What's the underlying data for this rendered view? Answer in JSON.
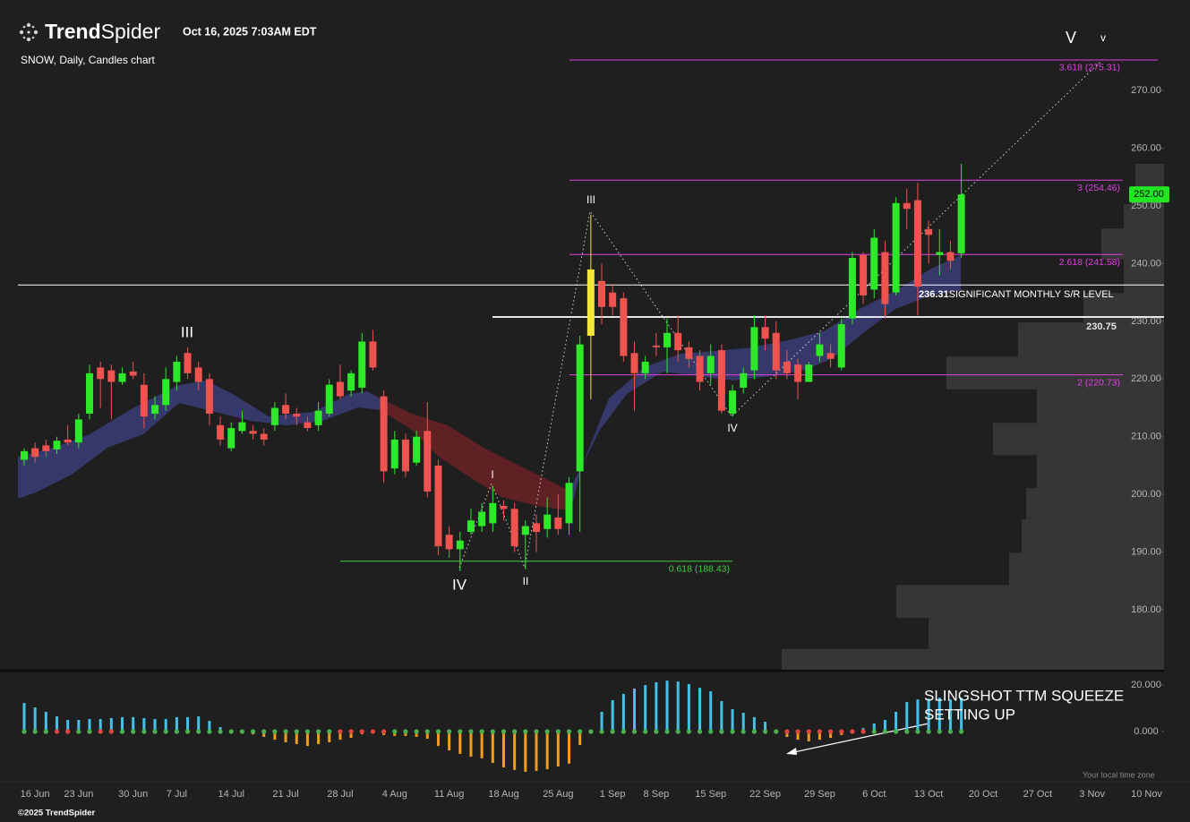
{
  "header": {
    "brand_bold": "Trend",
    "brand_light": "Spider",
    "timestamp": "Oct 16, 2025 7:03AM EDT",
    "footer": "©2025 TrendSpider",
    "timezone_note": "Your local time zone"
  },
  "chart_data": {
    "type": "candlestick",
    "title": "SNOW, Daily, Candles chart",
    "categories": [
      null,
      "16 Jun",
      null,
      null,
      null,
      "23 Jun",
      null,
      null,
      null,
      null,
      "30 Jun",
      null,
      null,
      null,
      "7 Jul",
      null,
      null,
      null,
      null,
      "14 Jul",
      null,
      null,
      null,
      null,
      "21 Jul",
      null,
      null,
      null,
      null,
      "28 Jul",
      null,
      null,
      null,
      null,
      "4 Aug",
      null,
      null,
      null,
      null,
      "11 Aug",
      null,
      null,
      null,
      null,
      "18 Aug",
      null,
      null,
      null,
      null,
      "25 Aug",
      null,
      null,
      null,
      null,
      "1 Sep",
      null,
      null,
      null,
      "8 Sep",
      null,
      null,
      null,
      null,
      "15 Sep",
      null,
      null,
      null,
      null,
      "22 Sep",
      null,
      null,
      null,
      null,
      "29 Sep",
      null,
      null,
      null,
      null,
      "6 Oct",
      null,
      null,
      null,
      null,
      "13 Oct",
      null,
      null,
      null,
      null,
      "20 Oct",
      null,
      null,
      null,
      null,
      "27 Oct",
      null,
      null,
      null,
      null,
      "3 Nov",
      null,
      null,
      null,
      null,
      "10 Nov"
    ],
    "open": [
      206,
      208,
      208.5,
      207.8,
      209.5,
      209,
      214,
      222,
      221.5,
      219.5,
      221.3,
      219,
      214,
      215.5,
      219.5,
      224.5,
      222,
      220,
      212,
      208,
      211,
      211,
      210.5,
      212,
      215.5,
      214,
      212.5,
      212,
      214,
      219.5,
      218,
      218.5,
      226.5,
      217,
      204.5,
      209.5,
      205.5,
      211,
      205,
      193,
      190.5,
      193.5,
      194.5,
      195,
      198,
      197.5,
      193,
      195,
      194,
      196,
      195,
      204,
      227.5,
      237,
      235,
      234,
      224.5,
      221,
      225.8,
      225.5,
      228,
      225.5,
      224,
      221,
      225,
      214,
      218.5,
      221.5,
      229,
      228,
      223,
      222.5,
      219.5,
      224,
      224.5,
      222,
      230.5,
      241.5,
      235.5,
      242,
      235,
      250.5,
      251,
      246,
      241.5,
      242,
      241.8,
      null,
      null,
      null,
      null,
      null,
      null,
      null,
      null,
      null,
      null,
      null,
      null,
      null,
      null,
      null,
      null,
      null
    ],
    "high": [
      208,
      209,
      209.5,
      210,
      212,
      214,
      222.5,
      223,
      222.5,
      222,
      223,
      221,
      217,
      222,
      224,
      225.5,
      223,
      221,
      213.5,
      212.5,
      214.5,
      212,
      211.5,
      216,
      217.5,
      215,
      213.5,
      216,
      220,
      222.5,
      221.5,
      228,
      228.5,
      218,
      211,
      210.5,
      211,
      216,
      206,
      194.5,
      193.5,
      197.5,
      198.5,
      201.5,
      199,
      198.5,
      195.5,
      196.5,
      199.5,
      200,
      203,
      227.5,
      248.5,
      240,
      236.5,
      235,
      226.5,
      224,
      228,
      230.5,
      231,
      226.5,
      225,
      226,
      226,
      219,
      222,
      231,
      231,
      230,
      225,
      223.5,
      223,
      228,
      226,
      230.5,
      242,
      242,
      246,
      244,
      251.5,
      253,
      254,
      247.5,
      246,
      244,
      257.3,
      null,
      null,
      null,
      null,
      null,
      null,
      null,
      null,
      null,
      null,
      null,
      null,
      null,
      null,
      null,
      null,
      null
    ],
    "low": [
      205,
      205.5,
      206.5,
      207,
      208.5,
      208,
      213,
      215,
      213,
      219,
      220,
      211.5,
      213,
      214.5,
      218,
      220,
      218,
      212,
      208.5,
      207.5,
      210.5,
      209.5,
      208.5,
      211,
      213,
      212,
      211,
      211,
      213.5,
      216.5,
      217,
      217.5,
      221.5,
      202,
      203.5,
      203,
      205,
      199.5,
      189.5,
      189,
      186.7,
      193,
      193.5,
      193.5,
      195.5,
      190,
      187,
      190,
      192.5,
      193,
      193,
      193.5,
      216.5,
      229.5,
      231,
      223,
      214.5,
      220,
      224,
      221,
      223,
      222,
      218,
      219,
      214,
      213.5,
      217.5,
      220,
      225,
      220,
      220,
      216.5,
      219.5,
      223,
      222,
      221.5,
      229.5,
      233,
      234,
      230.5,
      234.5,
      246,
      231,
      240,
      238,
      239,
      241,
      null,
      null,
      null,
      null,
      null,
      null,
      null,
      null,
      null,
      null,
      null,
      null,
      null,
      null,
      null,
      null,
      null
    ],
    "close": [
      207.5,
      206.5,
      207.5,
      209.3,
      209,
      213,
      221,
      220,
      219.5,
      221,
      220.6,
      213.5,
      215.5,
      220,
      223,
      221,
      219.5,
      214,
      209.5,
      211.5,
      212.5,
      210.5,
      209.5,
      215,
      214,
      213.5,
      211.5,
      214.5,
      219,
      217,
      221,
      226.5,
      222,
      204,
      209.5,
      204,
      210,
      200.5,
      191,
      190.5,
      192,
      195.5,
      197,
      198.5,
      197.5,
      191,
      194.5,
      193.5,
      196.5,
      194,
      202,
      226,
      239,
      232.5,
      232.5,
      224,
      221,
      223,
      225.5,
      228,
      225,
      223.5,
      219.5,
      224,
      214.5,
      218,
      221,
      229,
      227,
      221.5,
      221,
      219.5,
      222.5,
      226,
      223.5,
      229.5,
      241,
      234.5,
      244.5,
      233,
      250.5,
      249.5,
      236,
      245,
      242,
      240.5,
      252,
      null,
      null,
      null,
      null,
      null,
      null,
      null,
      null,
      null,
      null,
      null,
      null,
      null,
      null,
      null,
      null,
      null
    ],
    "up_color": "#2ee82a",
    "down_color": "#ef5350",
    "highlight": {
      "index": 52,
      "color": "#f5e63a"
    },
    "ylim": [
      169.6,
      282.6
    ],
    "yticks": [
      {
        "value": 180,
        "label": "180.00"
      },
      {
        "value": 190,
        "label": "190.00"
      },
      {
        "value": 200,
        "label": "200.00"
      },
      {
        "value": 210,
        "label": "210.00"
      },
      {
        "value": 220,
        "label": "220.00"
      },
      {
        "value": 230,
        "label": "230.00"
      },
      {
        "value": 240,
        "label": "240.00"
      },
      {
        "value": 250,
        "label": "250.00"
      },
      {
        "value": 260,
        "label": "260.00"
      },
      {
        "value": 270,
        "label": "270.00"
      }
    ],
    "last_price": {
      "value": 252,
      "label": "252.00",
      "color": "#22e622"
    },
    "levels": [
      {
        "value": 236.31,
        "label": "SIGNIFICANT MONTHLY S/R LEVEL",
        "color": "#ffffff"
      },
      {
        "value": 230.75,
        "color": "#e6e6e6"
      }
    ],
    "fib_levels": [
      {
        "value": 275.31,
        "label": "3.618 (275.31)",
        "color": "#e040e0"
      },
      {
        "value": 254.46,
        "label": "3 (254.46)",
        "color": "#e040e0"
      },
      {
        "value": 241.58,
        "label": "2.618 (241.58)",
        "color": "#e040e0"
      },
      {
        "value": 220.73,
        "label": "2 (220.73)",
        "color": "#e040e0"
      },
      {
        "value": 188.43,
        "label": "0.618 (188.43)",
        "color": "#3ed13e"
      }
    ],
    "waves": [
      "III",
      "IV",
      "I",
      "II",
      "III",
      "IV",
      "V",
      "v"
    ],
    "volume_profile": {
      "bins": [
        169.6,
        173.2,
        178.6,
        184.3,
        189.9,
        195.7,
        201.1,
        206.8,
        212.4,
        218.2,
        223.9,
        229.8,
        234.9,
        240.7,
        246.1,
        250.3,
        257.3
      ],
      "values": [
        427,
        263,
        299,
        173,
        159,
        154,
        142,
        191,
        142,
        243,
        163,
        90,
        45,
        70,
        45,
        32
      ],
      "color": "#363636"
    },
    "indicator": {
      "type": "bar",
      "ylim": [
        -20.4,
        25.8
      ],
      "yticks": [
        {
          "value": 20,
          "label": "20.000"
        },
        {
          "value": 0,
          "label": "0.000"
        }
      ],
      "values": [
        12.3,
        10.4,
        8.5,
        6.5,
        5,
        5,
        5.4,
        5.4,
        5.8,
        6.2,
        6.2,
        5.8,
        5.4,
        5.4,
        6.2,
        6.2,
        6.5,
        4.6,
        1.9,
        0.8,
        0.4,
        -1.2,
        -2.3,
        -3.5,
        -4.6,
        -5.4,
        -6.2,
        -5.4,
        -4.6,
        -3.5,
        -2.7,
        -1.2,
        -0.4,
        -1.5,
        -1.9,
        -1.9,
        -2.3,
        -3.1,
        -6.2,
        -8.1,
        -9.6,
        -10.8,
        -11.5,
        -13.5,
        -15.4,
        -16.5,
        -17.3,
        -16.9,
        -16.2,
        -15,
        -13.8,
        -5.8,
        0.8,
        8.5,
        13.5,
        16.2,
        18.5,
        20,
        21.2,
        21.9,
        21.5,
        20.4,
        18.8,
        17.3,
        13.1,
        9.6,
        8.1,
        6.2,
        4.2,
        0.8,
        -2.3,
        -3.5,
        -4.2,
        -3.5,
        -2.7,
        -1.5,
        -0.4,
        1.5,
        3.5,
        5,
        8.5,
        12.7,
        13.8,
        14.2,
        14.6,
        13.8,
        14.6,
        null,
        null,
        null,
        null,
        null,
        null,
        null,
        null,
        null,
        null,
        null,
        null,
        null,
        null,
        null,
        null,
        null
      ],
      "squeeze_on": [
        false,
        false,
        false,
        true,
        true,
        false,
        false,
        true,
        true,
        false,
        false,
        false,
        false,
        false,
        false,
        false,
        false,
        false,
        false,
        false,
        false,
        false,
        false,
        false,
        false,
        false,
        false,
        false,
        false,
        true,
        true,
        true,
        true,
        true,
        false,
        false,
        false,
        false,
        false,
        false,
        false,
        false,
        false,
        false,
        false,
        false,
        false,
        false,
        false,
        false,
        false,
        false,
        false,
        false,
        false,
        false,
        false,
        false,
        false,
        false,
        false,
        false,
        false,
        false,
        false,
        false,
        false,
        false,
        false,
        false,
        true,
        true,
        true,
        true,
        true,
        true,
        true,
        true,
        false,
        false,
        false,
        false,
        false,
        false,
        false,
        false,
        false,
        null,
        null,
        null,
        null,
        null,
        null,
        null,
        null,
        null,
        null,
        null,
        null,
        null,
        null,
        null,
        null,
        null
      ],
      "positive_color": "#45c1e8",
      "negative_color": "#f39c1c",
      "squeeze_on_color": "#e0453f",
      "squeeze_off_color": "#4caf50",
      "annotation": [
        "SLINGSHOT TTM SQUEEZE",
        "SETTING UP"
      ]
    }
  }
}
